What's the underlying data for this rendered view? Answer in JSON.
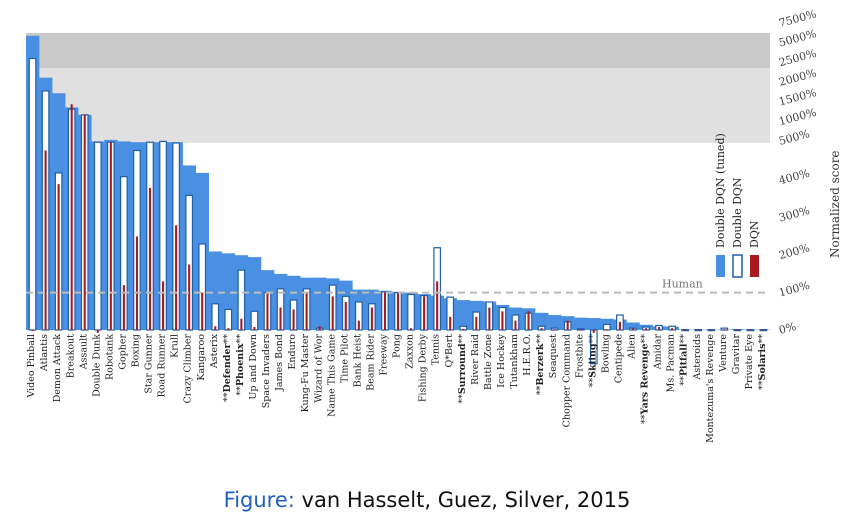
{
  "caption": {
    "prefix": "Figure:",
    "text": "van Hasselt, Guez, Silver, 2015"
  },
  "colors": {
    "tuned": "#4a90e2",
    "ddqn_outline": "#1f5fa8",
    "dqn": "#a81a22",
    "band_dark": "#c9c9c9",
    "band_light": "#e0e0e0",
    "human_line": "#bbbbbb"
  },
  "chart_data": {
    "type": "bar",
    "ylabel": "Normalized score",
    "human_label": "Human",
    "human_value": 100,
    "y_ticks_linear": [
      "0%",
      "100%",
      "200%",
      "300%",
      "400%"
    ],
    "y_ticks_upper": [
      "500%",
      "1000%",
      "1500%",
      "2000%",
      "2500%",
      "5000%",
      "7500%"
    ],
    "scale_note": "piecewise: linear 0-500%, compressed above",
    "series": [
      {
        "name": "Double DQN (tuned)"
      },
      {
        "name": "Double DQN"
      },
      {
        "name": "DQN"
      }
    ],
    "categories": [
      "Video Pinball",
      "Atlantis",
      "Demon Attack",
      "Breakout",
      "Assault",
      "Double Dunk",
      "Robotank",
      "Gopher",
      "Boxing",
      "Star Gunner",
      "Road Runner",
      "Krull",
      "Crazy Climber",
      "Kangaroo",
      "Asterix",
      "**Defender**",
      "**Phoenix**",
      "Up and Down",
      "Space Invaders",
      "James Bond",
      "Enduro",
      "Kung-Fu Master",
      "Wizard of Wor",
      "Name This Game",
      "Time Pilot",
      "Bank Heist",
      "Beam Rider",
      "Freeway",
      "Pong",
      "Zaxxon",
      "Fishing Derby",
      "Tennis",
      "Q*Bert",
      "**Surround**",
      "River Raid",
      "Battle Zone",
      "Ice Hockey",
      "Tutankham",
      "H.E.R.O.",
      "**Berzerk**",
      "Seaquest",
      "Chopper Command",
      "Frostbite",
      "**Skiing**",
      "Bowling",
      "Centipede",
      "Alien",
      "**Yars Revenge**",
      "Amidar",
      "Ms. Pacman",
      "**Pitfall**",
      "Asteroids",
      "Montezuma's Revenge",
      "Venture",
      "Gravitar",
      "Private Eye",
      "**Solaris**"
    ],
    "tuned": [
      7000,
      2500,
      1700,
      1200,
      1000,
      520,
      540,
      520,
      510,
      510,
      510,
      510,
      440,
      420,
      210,
      205,
      200,
      195,
      160,
      150,
      145,
      140,
      140,
      138,
      132,
      108,
      108,
      105,
      102,
      100,
      96,
      92,
      85,
      80,
      78,
      76,
      67,
      60,
      58,
      46,
      40,
      37,
      33,
      32,
      30,
      28,
      20,
      14,
      10,
      9,
      1,
      1,
      1,
      1,
      2,
      1,
      1
    ],
    "ddqn": [
      4000,
      1800,
      420,
      1150,
      1000,
      510,
      510,
      410,
      480,
      510,
      520,
      500,
      360,
      230,
      70,
      55,
      160,
      50,
      100,
      110,
      80,
      110,
      5,
      120,
      90,
      75,
      70,
      102,
      100,
      95,
      92,
      220,
      88,
      10,
      48,
      75,
      60,
      40,
      45,
      10,
      5,
      22,
      3,
      -100,
      15,
      40,
      5,
      8,
      12,
      10,
      1,
      1,
      1,
      5,
      1,
      1,
      1
    ],
    "dqn": [
      -2,
      480,
      390,
      1300,
      1000,
      -5,
      510,
      120,
      250,
      380,
      130,
      280,
      175,
      100,
      10,
      5,
      30,
      8,
      100,
      60,
      55,
      100,
      10,
      90,
      75,
      25,
      60,
      100,
      100,
      5,
      90,
      130,
      35,
      3,
      35,
      60,
      50,
      25,
      50,
      5,
      2,
      25,
      2,
      -5,
      2,
      22,
      5,
      5,
      8,
      5,
      1,
      1,
      1,
      1,
      1,
      1,
      1
    ]
  },
  "legend": {
    "tuned": "Double DQN (tuned)",
    "ddqn": "Double DQN",
    "dqn": "DQN"
  }
}
